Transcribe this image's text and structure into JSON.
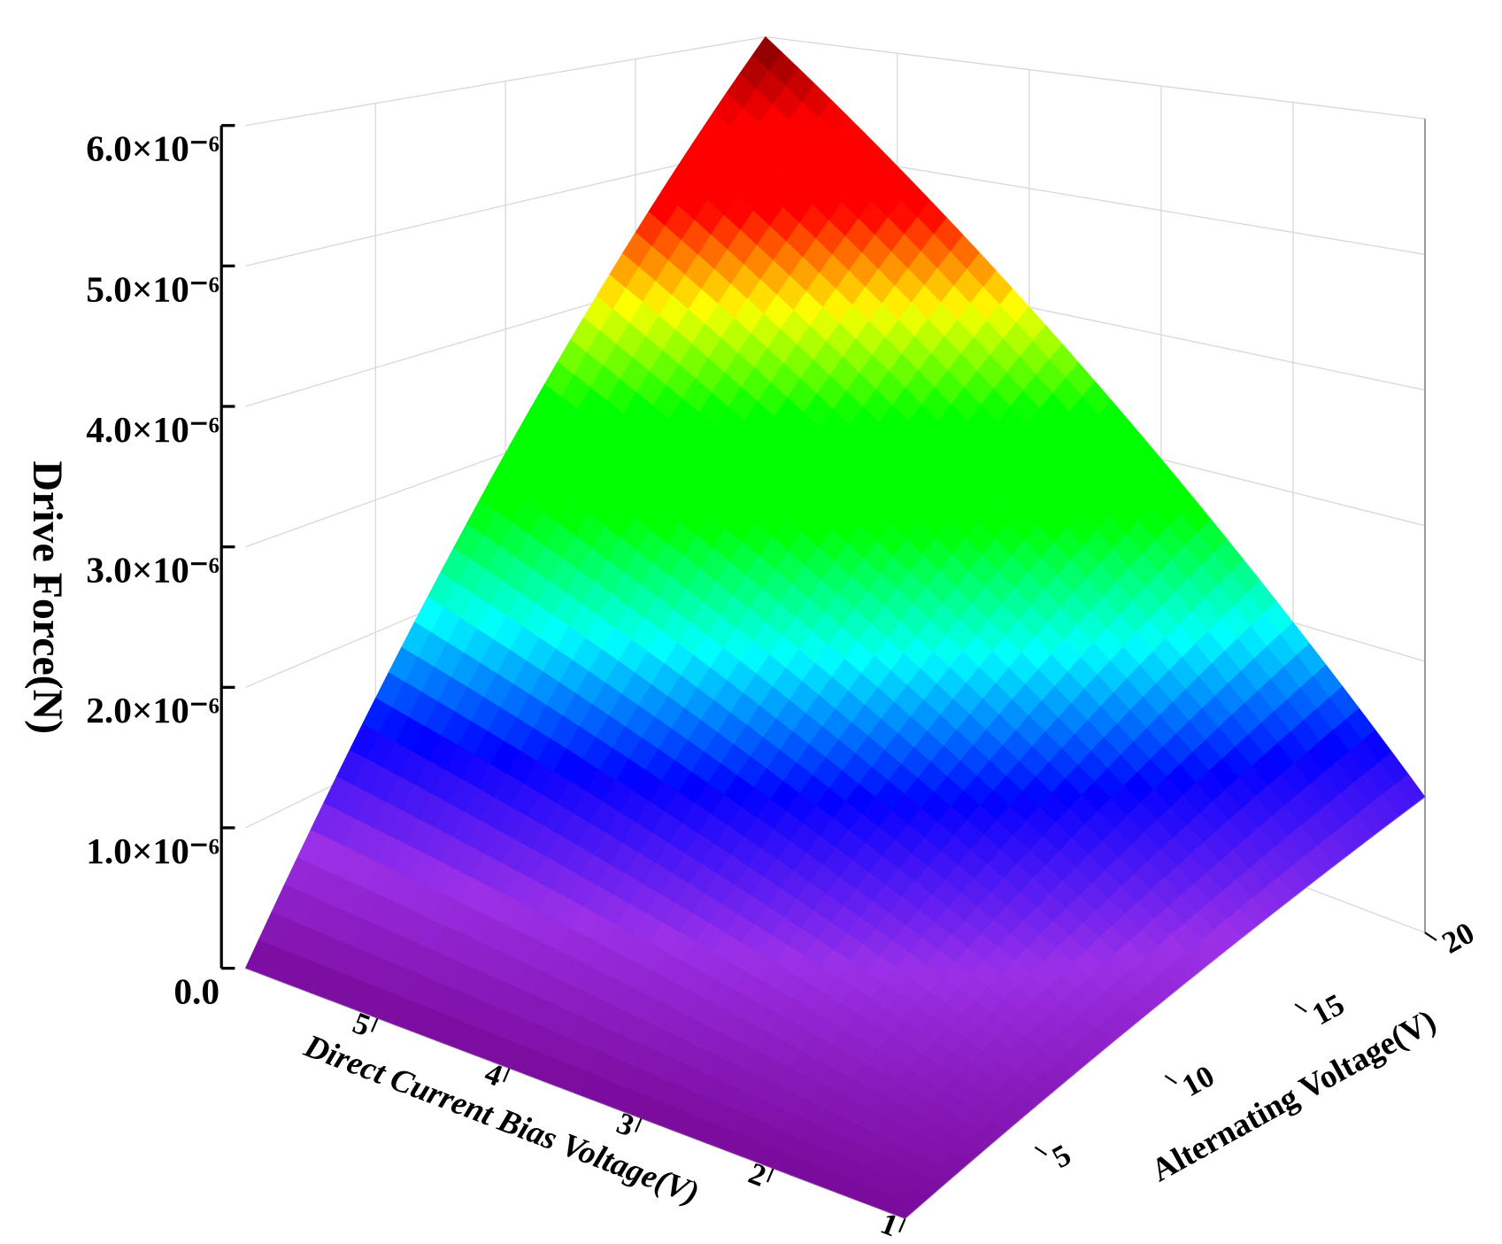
{
  "chart_data": {
    "type": "surface",
    "xlabel": "Direct Current Bias Voltage(V)",
    "ylabel": "Alternating Voltage(V)",
    "zlabel": "Drive Force(N)",
    "x": [
      1,
      1.5,
      2,
      2.5,
      3,
      3.5,
      4,
      4.5,
      5,
      5.5,
      6
    ],
    "y": [
      0,
      2,
      4,
      6,
      8,
      10,
      12,
      14,
      16,
      18,
      20
    ],
    "z": [
      [
        0,
        1e-07,
        2e-07,
        3e-07,
        4e-07,
        5e-07,
        6e-07,
        7e-07,
        8e-07,
        9e-07,
        1e-06
      ],
      [
        0,
        1.5e-07,
        3e-07,
        4.5e-07,
        6e-07,
        7.5e-07,
        9e-07,
        1.05e-06,
        1.2e-06,
        1.35e-06,
        1.5e-06
      ],
      [
        0,
        2e-07,
        4e-07,
        6e-07,
        8e-07,
        1e-06,
        1.2e-06,
        1.4e-06,
        1.6e-06,
        1.8e-06,
        2e-06
      ],
      [
        0,
        2.5e-07,
        5e-07,
        7.5e-07,
        1e-06,
        1.25e-06,
        1.5e-06,
        1.75e-06,
        2e-06,
        2.25e-06,
        2.5e-06
      ],
      [
        0,
        3e-07,
        6e-07,
        9e-07,
        1.2e-06,
        1.5e-06,
        1.8e-06,
        2.1e-06,
        2.4e-06,
        2.7e-06,
        3e-06
      ],
      [
        0,
        3.5e-07,
        7e-07,
        1.05e-06,
        1.4e-06,
        1.75e-06,
        2.1e-06,
        2.45e-06,
        2.8e-06,
        3.15e-06,
        3.5e-06
      ],
      [
        0,
        4e-07,
        8e-07,
        1.2e-06,
        1.6e-06,
        2e-06,
        2.4e-06,
        2.8e-06,
        3.2e-06,
        3.6e-06,
        4e-06
      ],
      [
        0,
        4.5e-07,
        9e-07,
        1.35e-06,
        1.8e-06,
        2.25e-06,
        2.7e-06,
        3.15e-06,
        3.6e-06,
        4.05e-06,
        4.5e-06
      ],
      [
        0,
        5e-07,
        1e-06,
        1.5e-06,
        2e-06,
        2.5e-06,
        3e-06,
        3.5e-06,
        4e-06,
        4.5e-06,
        5e-06
      ],
      [
        0,
        5.5e-07,
        1.1e-06,
        1.65e-06,
        2.2e-06,
        2.75e-06,
        3.3e-06,
        3.85e-06,
        4.4e-06,
        4.95e-06,
        5.5e-06
      ],
      [
        0,
        6e-07,
        1.2e-06,
        1.8e-06,
        2.4e-06,
        3e-06,
        3.6e-06,
        4.2e-06,
        4.8e-06,
        5.4e-06,
        6e-06
      ]
    ],
    "xlim": [
      1,
      6
    ],
    "xticks": [
      1,
      2,
      3,
      4,
      5
    ],
    "ylim": [
      0,
      20
    ],
    "yticks": [
      5,
      10,
      15,
      20
    ],
    "zlim": [
      0,
      6e-06
    ],
    "zticks": [
      {
        "value": 0,
        "label": "0.0"
      },
      {
        "value": 1e-06,
        "label": "1.0×10⁻⁶"
      },
      {
        "value": 2e-06,
        "label": "2.0×10⁻⁶"
      },
      {
        "value": 3e-06,
        "label": "3.0×10⁻⁶"
      },
      {
        "value": 4e-06,
        "label": "4.0×10⁻⁶"
      },
      {
        "value": 5e-06,
        "label": "5.0×10⁻⁶"
      },
      {
        "value": 6e-06,
        "label": "6.0×10⁻⁶"
      }
    ],
    "colormap": [
      "#7a0a9a",
      "#9b30e8",
      "#0000ff",
      "#00ffff",
      "#00ff00",
      "#00ff00",
      "#ffff00",
      "#ff0000",
      "#ff0000",
      "#7a0000"
    ],
    "grid": true
  }
}
